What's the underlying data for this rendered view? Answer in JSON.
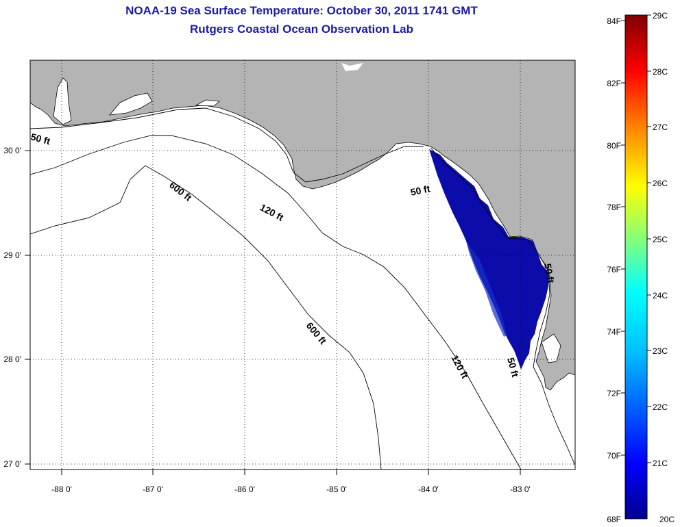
{
  "title": "NOAA-19 Sea Surface Temperature:  October 30, 2011 1741 GMT",
  "subtitle": "Rutgers Coastal Ocean Observation Lab",
  "map": {
    "lon_range": [
      -88.33,
      -82.35
    ],
    "lat_range": [
      26.97,
      30.85
    ],
    "lon_ticks": [
      "-88 0'",
      "-87 0'",
      "-86 0'",
      "-85 0'",
      "-84 0'",
      "-83 0'"
    ],
    "lon_values": [
      -88,
      -87,
      -86,
      -85,
      -84,
      -83
    ],
    "lat_ticks": [
      "30 0'",
      "29 0'",
      "28 0'",
      "27 0'"
    ],
    "lat_values": [
      30,
      29,
      28,
      27
    ],
    "contour_labels": [
      "50 ft",
      "120 ft",
      "600 ft",
      "50 ft",
      "600 ft",
      "120 ft",
      "50 ft",
      "50 ft"
    ],
    "land_color": "#b4b4b4",
    "sst_color": "#0a0aa8",
    "ocean_color": "#ffffff"
  },
  "colorbar": {
    "f_labels": [
      "84F",
      "82F",
      "80F",
      "78F",
      "76F",
      "74F",
      "72F",
      "70F",
      "68F"
    ],
    "c_labels": [
      "29C",
      "28C",
      "27C",
      "26C",
      "25C",
      "24C",
      "23C",
      "22C",
      "21C",
      "20C"
    ],
    "f_range": [
      68,
      84
    ],
    "c_range": [
      20,
      29
    ],
    "colors": [
      "#00008f",
      "#0000ff",
      "#007fff",
      "#00ffff",
      "#7fff7f",
      "#ffff00",
      "#ff7f00",
      "#ff0000",
      "#7f0000"
    ]
  }
}
